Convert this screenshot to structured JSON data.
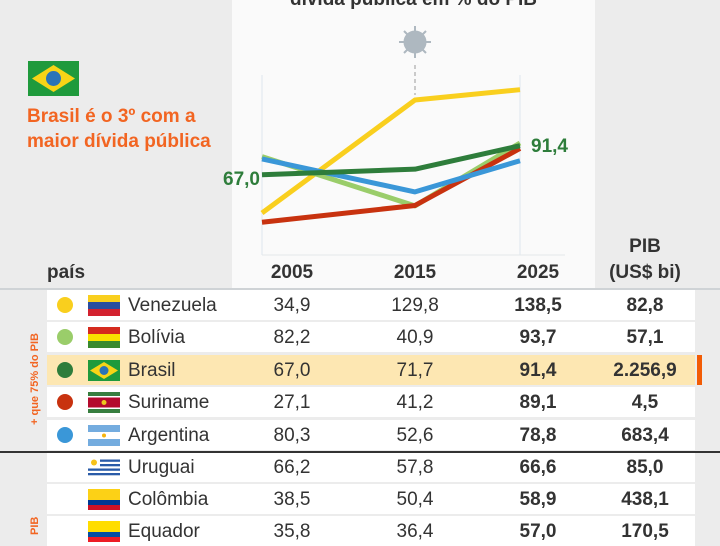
{
  "headline": "Brasil é o 3º com a maior dívida pública",
  "group_labels": [
    "+ que 75% do PIB",
    "PIB"
  ],
  "table": {
    "headers": {
      "country": "país",
      "y2005": "2005",
      "y2015": "2015",
      "y2025": "2025",
      "pib1": "PIB",
      "pib2": "(US$ bi)"
    },
    "rows": [
      {
        "name": "Venezuela",
        "v2005": "34,9",
        "v2015": "129,8",
        "v2025": "138,5",
        "pib": "82,8",
        "color": "#f9cf1e"
      },
      {
        "name": "Bolívia",
        "v2005": "82,2",
        "v2015": "40,9",
        "v2025": "93,7",
        "pib": "57,1",
        "color": "#9acd6a"
      },
      {
        "name": "Brasil",
        "v2005": "67,0",
        "v2015": "71,7",
        "v2025": "91,4",
        "pib": "2.256,9",
        "color": "#2e7d3b"
      },
      {
        "name": "Suriname",
        "v2005": "27,1",
        "v2015": "41,2",
        "v2025": "89,1",
        "pib": "4,5",
        "color": "#c8320f"
      },
      {
        "name": "Argentina",
        "v2005": "80,3",
        "v2015": "52,6",
        "v2025": "78,8",
        "pib": "683,4",
        "color": "#3a97d8"
      },
      {
        "name": "Uruguai",
        "v2005": "66,2",
        "v2015": "57,8",
        "v2025": "66,6",
        "pib": "85,0"
      },
      {
        "name": "Colômbia",
        "v2005": "38,5",
        "v2015": "50,4",
        "v2025": "58,9",
        "pib": "438,1"
      },
      {
        "name": "Equador",
        "v2005": "35,8",
        "v2015": "36,4",
        "v2025": "57,0",
        "pib": "170,5"
      }
    ]
  },
  "chart_data": {
    "type": "line",
    "title": "dívida pública em % do PIB",
    "x": [
      2005,
      2015,
      2025
    ],
    "series": [
      {
        "name": "Venezuela",
        "values": [
          34.9,
          129.8,
          138.5
        ],
        "color": "#f9cf1e"
      },
      {
        "name": "Bolívia",
        "values": [
          82.2,
          40.9,
          93.7
        ],
        "color": "#9acd6a"
      },
      {
        "name": "Suriname",
        "values": [
          27.1,
          41.2,
          89.1
        ],
        "color": "#c8320f"
      },
      {
        "name": "Argentina",
        "values": [
          80.3,
          52.6,
          78.8
        ],
        "color": "#3a97d8"
      },
      {
        "name": "Brasil",
        "values": [
          67.0,
          71.7,
          91.4
        ],
        "color": "#2e7d3b"
      }
    ],
    "labels": {
      "start": "67,0",
      "end": "91,4"
    },
    "annotation": "covid-icon at 2015"
  }
}
